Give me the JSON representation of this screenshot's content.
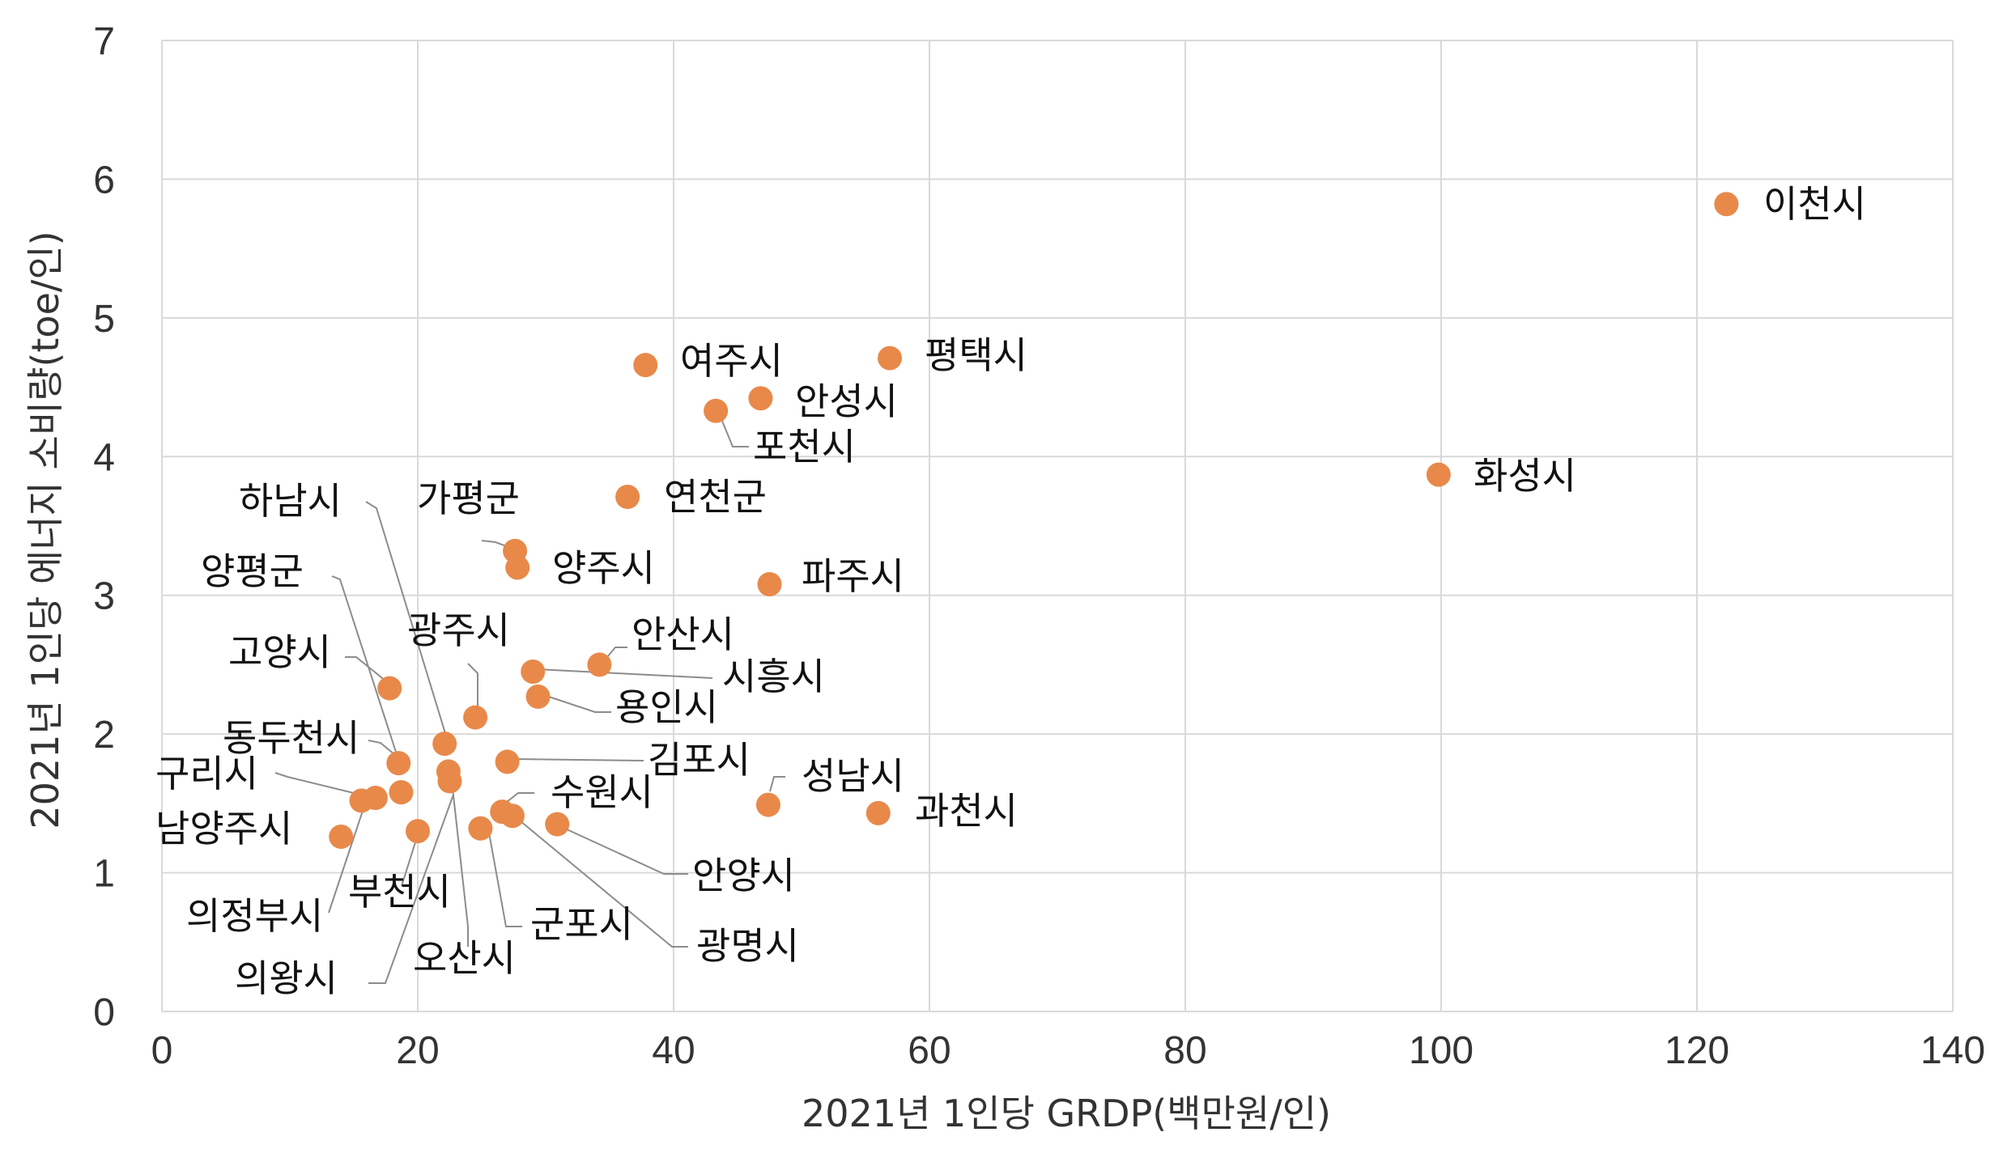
{
  "chart_data": {
    "type": "scatter",
    "xlabel": "2021년 1인당 GRDP(백만원/인)",
    "ylabel": "2021년 1인당 에너지 소비량(toe/인)",
    "xlim": [
      0,
      140
    ],
    "ylim": [
      0,
      7
    ],
    "x_ticks": [
      "0",
      "20",
      "40",
      "60",
      "80",
      "100",
      "120",
      "140"
    ],
    "y_ticks": [
      "0",
      "1",
      "2",
      "3",
      "4",
      "5",
      "6",
      "7"
    ],
    "grid": true,
    "marker_color": "#E8894A",
    "points": [
      {
        "label": "이천시",
        "x": 122.3,
        "y": 5.82
      },
      {
        "label": "평택시",
        "x": 56.9,
        "y": 4.71
      },
      {
        "label": "여주시",
        "x": 37.8,
        "y": 4.66
      },
      {
        "label": "안성시",
        "x": 46.8,
        "y": 4.42
      },
      {
        "label": "포천시",
        "x": 43.3,
        "y": 4.33
      },
      {
        "label": "화성시",
        "x": 99.8,
        "y": 3.87
      },
      {
        "label": "연천군",
        "x": 36.4,
        "y": 3.71
      },
      {
        "label": "가평군",
        "x": 27.6,
        "y": 3.32
      },
      {
        "label": "양주시",
        "x": 27.8,
        "y": 3.2
      },
      {
        "label": "파주시",
        "x": 47.5,
        "y": 3.08
      },
      {
        "label": "안산시",
        "x": 34.2,
        "y": 2.5
      },
      {
        "label": "시흥시",
        "x": 29.0,
        "y": 2.45
      },
      {
        "label": "고양시",
        "x": 17.8,
        "y": 2.33
      },
      {
        "label": "용인시",
        "x": 29.4,
        "y": 2.27
      },
      {
        "label": "광주시",
        "x": 24.5,
        "y": 2.12
      },
      {
        "label": "하남시",
        "x": 22.1,
        "y": 1.93
      },
      {
        "label": "김포시",
        "x": 27.0,
        "y": 1.8
      },
      {
        "label": "동두천시",
        "x": 18.5,
        "y": 1.79
      },
      {
        "label": "오산시",
        "x": 22.4,
        "y": 1.73
      },
      {
        "label": "의왕시",
        "x": 22.5,
        "y": 1.66
      },
      {
        "label": "양평군",
        "x": 18.7,
        "y": 1.58
      },
      {
        "label": "구리시",
        "x": 15.6,
        "y": 1.52
      },
      {
        "label": "의정부시",
        "x": 16.7,
        "y": 1.54
      },
      {
        "label": "성남시",
        "x": 47.4,
        "y": 1.49
      },
      {
        "label": "과천시",
        "x": 56.0,
        "y": 1.43
      },
      {
        "label": "광명시",
        "x": 26.6,
        "y": 1.44
      },
      {
        "label": "수원시",
        "x": 27.4,
        "y": 1.41
      },
      {
        "label": "안양시",
        "x": 30.9,
        "y": 1.35
      },
      {
        "label": "군포시",
        "x": 24.9,
        "y": 1.32
      },
      {
        "label": "부천시",
        "x": 20.0,
        "y": 1.3
      },
      {
        "label": "남양주시",
        "x": 14.0,
        "y": 1.26
      }
    ]
  }
}
